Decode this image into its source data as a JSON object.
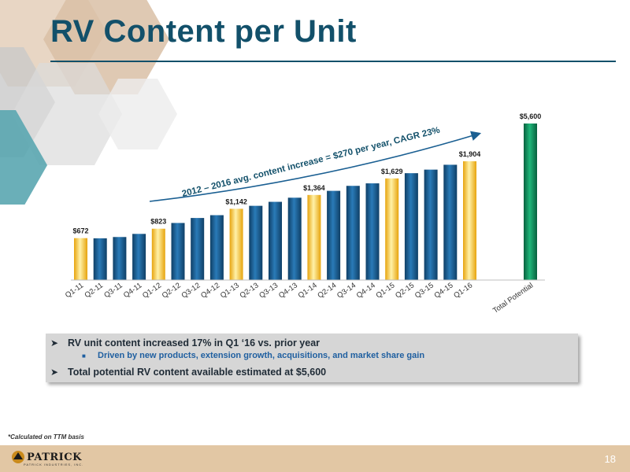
{
  "slide": {
    "title": "RV Content per Unit",
    "page_number": "18",
    "footnote": "*Calculated on TTM basis",
    "logo_text": "PATRICK",
    "logo_subtext": "PATRICK INDUSTRIES, INC."
  },
  "bullets": {
    "main1": "RV unit content increased 17% in Q1 ‘16 vs. prior year",
    "sub1": "Driven by new products, extension growth, acquisitions, and market share gain",
    "main2": "Total potential RV content available estimated at $5,600"
  },
  "chart_data": {
    "type": "bar",
    "categories": [
      "Q1-11",
      "Q2-11",
      "Q3-11",
      "Q4-11",
      "Q1-12",
      "Q2-12",
      "Q3-12",
      "Q4-12",
      "Q1-13",
      "Q2-13",
      "Q3-13",
      "Q4-13",
      "Q1-14",
      "Q2-14",
      "Q3-14",
      "Q4-14",
      "Q1-15",
      "Q2-15",
      "Q3-15",
      "Q4-15",
      "Q1-16",
      "Total Potential"
    ],
    "values": [
      672,
      669,
      690,
      740,
      823,
      915,
      995,
      1040,
      1142,
      1190,
      1254,
      1320,
      1364,
      1430,
      1510,
      1550,
      1629,
      1713,
      1770,
      1848,
      1904,
      5600
    ],
    "labels": [
      "$672",
      "",
      "",
      "",
      "$823",
      "",
      "",
      "",
      "$1,142",
      "",
      "",
      "",
      "$1,364",
      "",
      "",
      "",
      "$1,629",
      "",
      "",
      "",
      "$1,904",
      "$5,600"
    ],
    "highlighted": [
      true,
      false,
      false,
      false,
      true,
      false,
      false,
      false,
      true,
      false,
      false,
      false,
      true,
      false,
      false,
      false,
      true,
      false,
      false,
      false,
      true,
      false
    ],
    "annotation": "2012 – 2016 avg. content increase = $270 per year, CAGR 23%",
    "colors": {
      "blue": "#1a5f92",
      "highlight": "#f6c02a",
      "green": "#0d8a58",
      "text": "#1a1a1a"
    }
  }
}
